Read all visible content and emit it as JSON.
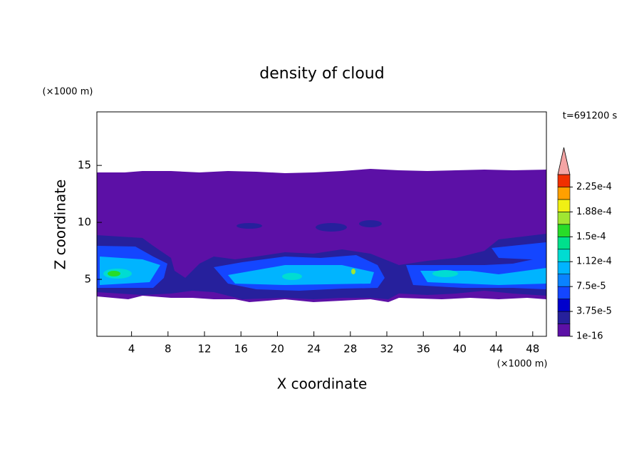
{
  "chart_data": {
    "type": "contour",
    "title": "density of cloud",
    "x_label": "X coordinate",
    "y_label": "Z coordinate",
    "x_unit": "(×1000 m)",
    "y_unit": "(×1000 m)",
    "time_label": "t=691200 s",
    "xlim": [
      0.2,
      49.5
    ],
    "ylim": [
      0,
      19.7
    ],
    "xticks": [
      4,
      8,
      12,
      16,
      20,
      24,
      28,
      32,
      36,
      40,
      44,
      48
    ],
    "yticks": [
      5,
      10,
      15
    ],
    "colorbar": {
      "clim": [
        1e-16,
        0.00024375
      ],
      "ticks": [
        {
          "value": 1e-16,
          "label": "1e-16"
        },
        {
          "value": 3.75e-05,
          "label": "3.75e-5"
        },
        {
          "value": 7.5e-05,
          "label": "7.5e-5"
        },
        {
          "value": 0.0001125,
          "label": "1.12e-4"
        },
        {
          "value": 0.00015,
          "label": "1.5e-4"
        },
        {
          "value": 0.0001875,
          "label": "1.88e-4"
        },
        {
          "value": 0.000225,
          "label": "2.25e-4"
        }
      ],
      "colors": [
        "#5c10a6",
        "#26209c",
        "#0000cc",
        "#1446ff",
        "#0a82ff",
        "#00b4ff",
        "#00dcd2",
        "#00e08c",
        "#28dc28",
        "#a0e632",
        "#f0f014",
        "#ffa000",
        "#f03000"
      ],
      "over_color": "#f4a4a4"
    }
  }
}
